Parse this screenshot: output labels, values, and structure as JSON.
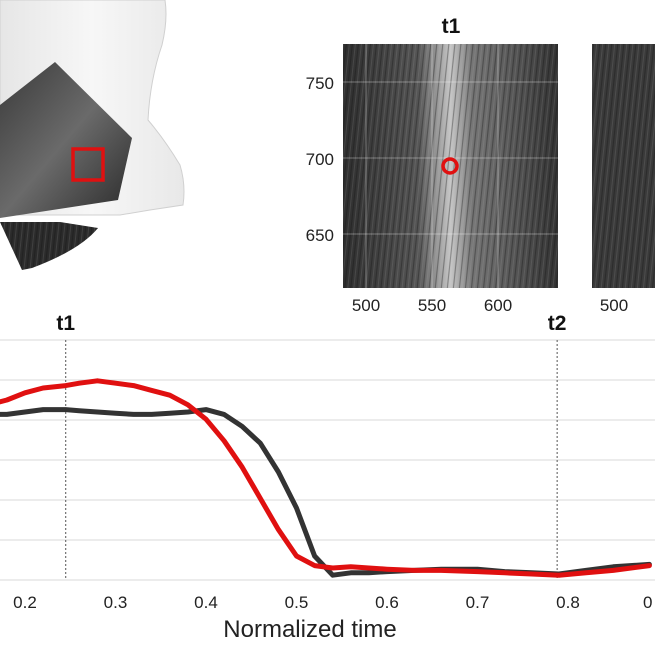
{
  "figure_top": {
    "panel_t1_title": "t1",
    "panel_t1_xticks": [
      "500",
      "550",
      "600"
    ],
    "panel_t1_yticks": [
      "750",
      "700",
      "650"
    ],
    "panel_t2_xticks": [
      "500"
    ],
    "marker_point": {
      "x": 565,
      "y": 695
    },
    "colors": {
      "marker": "#e01010",
      "roi_box": "#e01010"
    }
  },
  "chart_data": {
    "type": "line",
    "xlabel": "Normalized time",
    "ylabel": "",
    "xlim": [
      0.16,
      0.89
    ],
    "xticks": [
      0.2,
      0.3,
      0.4,
      0.5,
      0.6,
      0.7,
      0.8
    ],
    "xtick_labels": [
      "0.2",
      "0.3",
      "0.4",
      "0.5",
      "0.6",
      "0.7",
      "0.8"
    ],
    "xtick_partial_label": "0",
    "grid": true,
    "vlines": [
      {
        "label": "t1",
        "x": 0.245
      },
      {
        "label": "t2",
        "x": 0.788
      }
    ],
    "series": [
      {
        "color": "#e01010",
        "x": [
          0.16,
          0.18,
          0.2,
          0.22,
          0.245,
          0.26,
          0.28,
          0.3,
          0.32,
          0.34,
          0.36,
          0.38,
          0.4,
          0.42,
          0.44,
          0.46,
          0.48,
          0.5,
          0.52,
          0.54,
          0.56,
          0.58,
          0.6,
          0.63,
          0.66,
          0.7,
          0.73,
          0.76,
          0.79,
          0.82,
          0.85,
          0.89
        ],
        "y": [
          0.73,
          0.75,
          0.78,
          0.8,
          0.81,
          0.82,
          0.83,
          0.82,
          0.81,
          0.79,
          0.77,
          0.73,
          0.67,
          0.58,
          0.47,
          0.34,
          0.21,
          0.1,
          0.06,
          0.05,
          0.055,
          0.05,
          0.045,
          0.04,
          0.04,
          0.035,
          0.03,
          0.025,
          0.02,
          0.03,
          0.04,
          0.06
        ]
      },
      {
        "color": "#333333",
        "x": [
          0.16,
          0.18,
          0.2,
          0.22,
          0.245,
          0.26,
          0.28,
          0.3,
          0.32,
          0.34,
          0.36,
          0.38,
          0.4,
          0.42,
          0.44,
          0.46,
          0.48,
          0.5,
          0.52,
          0.54,
          0.56,
          0.58,
          0.6,
          0.63,
          0.66,
          0.7,
          0.73,
          0.76,
          0.79,
          0.82,
          0.85,
          0.89
        ],
        "y": [
          0.69,
          0.69,
          0.7,
          0.71,
          0.71,
          0.705,
          0.7,
          0.695,
          0.69,
          0.69,
          0.695,
          0.7,
          0.71,
          0.69,
          0.64,
          0.57,
          0.45,
          0.3,
          0.1,
          0.02,
          0.03,
          0.03,
          0.035,
          0.04,
          0.045,
          0.045,
          0.035,
          0.03,
          0.025,
          0.04,
          0.055,
          0.065
        ]
      }
    ]
  }
}
